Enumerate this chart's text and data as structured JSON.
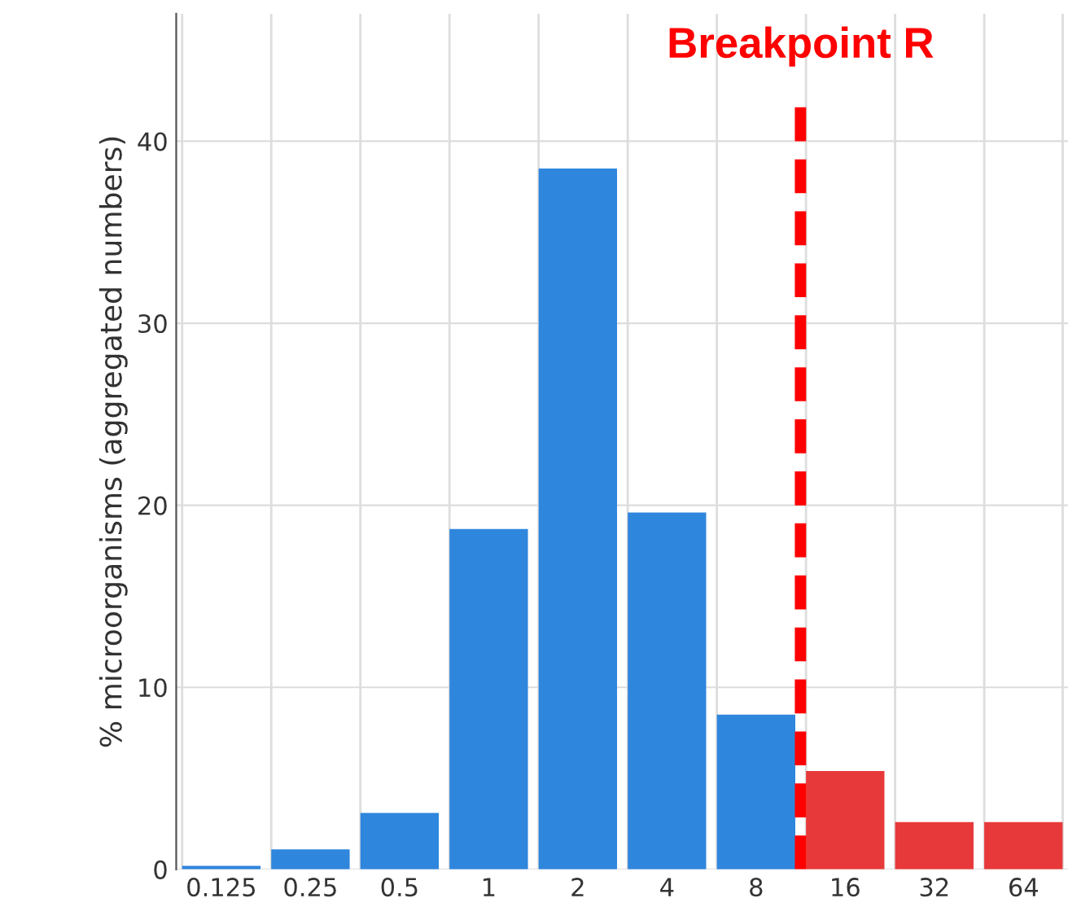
{
  "chart_data": {
    "type": "bar",
    "x": [
      0.125,
      0.25,
      0.5,
      1,
      2,
      4,
      8,
      16,
      32,
      64
    ],
    "values": [
      0.2,
      1.1,
      3.1,
      18.7,
      38.5,
      19.6,
      8.5,
      5.4,
      2.6,
      2.6
    ],
    "colors": [
      "#2f86dd",
      "#2f86dd",
      "#2f86dd",
      "#2f86dd",
      "#2f86dd",
      "#2f86dd",
      "#2f86dd",
      "#e8393a",
      "#e8393a",
      "#e8393a"
    ],
    "ylabel": "% microorganisms (aggregated numbers)",
    "log": "x",
    "xlim": [
      0.088,
      90.5
    ],
    "xticks": [
      0.125,
      0.25,
      0.5,
      1,
      2,
      4,
      8,
      16,
      32,
      64
    ],
    "ylim": [
      0,
      47
    ],
    "yticks": [
      0,
      10,
      20,
      30,
      40
    ],
    "ref_lines": [
      {
        "axis": "x",
        "value": 11.3,
        "label": "Breakpoint R",
        "color": "#ff0000",
        "line_style": "dashed"
      }
    ],
    "grid": true
  }
}
